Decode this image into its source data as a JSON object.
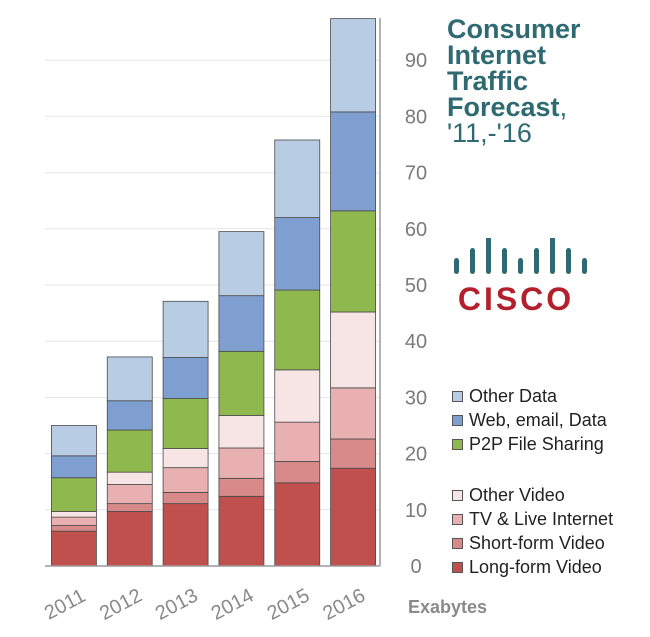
{
  "title": {
    "line1": "Consumer",
    "line2": "Internet",
    "line3": "Traffic",
    "line4": "Forecast",
    "line4_suffix": ",",
    "line5": "'11,-'16"
  },
  "logo_text": "CISCO",
  "unit_label": "Exabytes",
  "colors": {
    "other_data": "#b8cce4",
    "web_email_data": "#7f9fd0",
    "p2p": "#8fb84e",
    "other_video": "#f7e4e4",
    "tv_live": "#e8b0b0",
    "short_form": "#d88a8a",
    "long_form": "#c0504d",
    "title": "#2f6a72",
    "logo_bars": "#2f6a72",
    "logo_text": "#b3202d"
  },
  "chart_data": {
    "type": "bar",
    "stacked": true,
    "categories": [
      "2011",
      "2012",
      "2013",
      "2014",
      "2015",
      "2016"
    ],
    "series": [
      {
        "name": "Long-form Video",
        "values": [
          6.2,
          9.7,
          11.1,
          12.4,
          14.8,
          17.4
        ]
      },
      {
        "name": "Short-form Video",
        "values": [
          1.0,
          1.4,
          2.0,
          3.2,
          3.8,
          5.2
        ]
      },
      {
        "name": "TV & Live Internet",
        "values": [
          1.5,
          3.4,
          4.4,
          5.4,
          7.0,
          9.1
        ]
      },
      {
        "name": "Other Video",
        "values": [
          1.0,
          2.2,
          3.4,
          5.8,
          9.3,
          13.5
        ]
      },
      {
        "name": "P2P File Sharing",
        "values": [
          6.0,
          7.5,
          8.9,
          11.4,
          14.2,
          18.0
        ]
      },
      {
        "name": "Web, email, Data",
        "values": [
          3.9,
          5.2,
          7.3,
          9.9,
          12.9,
          17.6
        ]
      },
      {
        "name": "Other Data",
        "values": [
          5.4,
          7.8,
          10.0,
          11.4,
          13.8,
          16.6
        ]
      }
    ],
    "y_ticks": [
      "0",
      "10",
      "20",
      "30",
      "40",
      "50",
      "60",
      "70",
      "80",
      "90"
    ],
    "ylim": [
      0,
      97
    ],
    "y_axis_position": "right",
    "grid": true,
    "legend": {
      "placement": "right",
      "groups": [
        [
          "Other Data",
          "Web, email, Data",
          "P2P File Sharing"
        ],
        [
          "Other Video",
          "TV & Live Internet",
          "Short-form Video",
          "Long-form Video"
        ]
      ]
    }
  }
}
